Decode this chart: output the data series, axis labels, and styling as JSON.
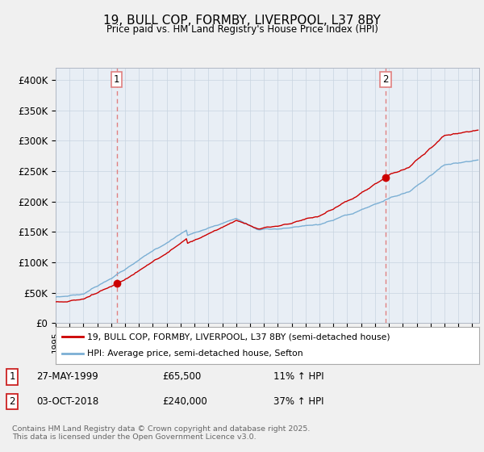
{
  "title": "19, BULL COP, FORMBY, LIVERPOOL, L37 8BY",
  "subtitle": "Price paid vs. HM Land Registry's House Price Index (HPI)",
  "background_color": "#f0f0f0",
  "plot_bg_color": "#e8eef5",
  "red_line_color": "#cc0000",
  "blue_line_color": "#7bafd4",
  "vline_color": "#e08080",
  "marker_color": "#cc0000",
  "ylim": [
    0,
    420000
  ],
  "yticks": [
    0,
    50000,
    100000,
    150000,
    200000,
    250000,
    300000,
    350000,
    400000
  ],
  "ytick_labels": [
    "£0",
    "£50K",
    "£100K",
    "£150K",
    "£200K",
    "£250K",
    "£300K",
    "£350K",
    "£400K"
  ],
  "sale1_year": 1999.4,
  "sale1_price": 65500,
  "sale2_year": 2018.75,
  "sale2_price": 240000,
  "legend_red": "19, BULL COP, FORMBY, LIVERPOOL, L37 8BY (semi-detached house)",
  "legend_blue": "HPI: Average price, semi-detached house, Sefton",
  "note1_label": "1",
  "note1_date": "27-MAY-1999",
  "note1_price": "£65,500",
  "note1_hpi": "11% ↑ HPI",
  "note2_label": "2",
  "note2_date": "03-OCT-2018",
  "note2_price": "£240,000",
  "note2_hpi": "37% ↑ HPI",
  "footer": "Contains HM Land Registry data © Crown copyright and database right 2025.\nThis data is licensed under the Open Government Licence v3.0.",
  "xmin": 1995.0,
  "xmax": 2025.5
}
